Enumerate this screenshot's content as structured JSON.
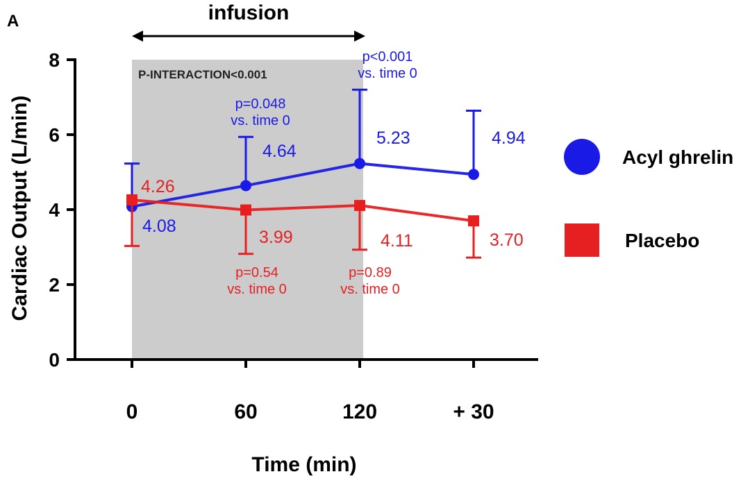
{
  "panel_label": "A",
  "infusion_label": "infusion",
  "interaction_text": "P-INTERACTION<0.001",
  "chart_data": {
    "type": "line",
    "xlabel": "Time (min)",
    "ylabel": "Cardiac Output (L/min)",
    "categories": [
      "0",
      "60",
      "120",
      "+ 30"
    ],
    "ylim": [
      0,
      8
    ],
    "yticks": [
      "0",
      "2",
      "4",
      "6",
      "8"
    ],
    "grid": false,
    "shaded_region": {
      "from": "0",
      "to": "120",
      "color": "#cccccc"
    },
    "legend_position": "right",
    "series": [
      {
        "name": "Acyl ghrelin",
        "color": "#1a1ae6",
        "marker": "circle",
        "values": [
          4.08,
          4.64,
          5.23,
          4.94
        ],
        "error_upper": [
          5.23,
          5.94,
          7.2,
          6.64
        ],
        "value_labels": [
          "4.08",
          "4.64",
          "5.23",
          "4.94"
        ]
      },
      {
        "name": "Placebo",
        "color": "#e62020",
        "marker": "square",
        "values": [
          4.26,
          3.99,
          4.11,
          3.7
        ],
        "error_lower": [
          3.03,
          2.82,
          2.93,
          2.72
        ],
        "value_labels": [
          "4.26",
          "3.99",
          "4.11",
          "3.70"
        ]
      }
    ],
    "annotations": [
      {
        "series": "Acyl ghrelin",
        "category": "60",
        "line1": "p=0.048",
        "line2": "vs. time 0"
      },
      {
        "series": "Acyl ghrelin",
        "category": "120",
        "line1": "p<0.001",
        "line2": "vs. time 0"
      },
      {
        "series": "Placebo",
        "category": "60",
        "line1": "p=0.54",
        "line2": "vs. time 0"
      },
      {
        "series": "Placebo",
        "category": "120",
        "line1": "p=0.89",
        "line2": "vs. time 0"
      }
    ]
  }
}
